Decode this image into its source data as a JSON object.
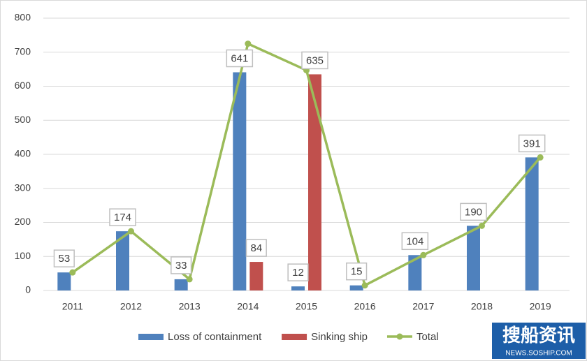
{
  "chart_data": {
    "type": "bar",
    "categories": [
      "2011",
      "2012",
      "2013",
      "2014",
      "2015",
      "2016",
      "2017",
      "2018",
      "2019"
    ],
    "series": [
      {
        "name": "Loss of containment",
        "type": "bar",
        "color": "#4f81bd",
        "data_labels": true,
        "values": [
          53,
          174,
          33,
          641,
          12,
          15,
          104,
          190,
          391
        ]
      },
      {
        "name": "Sinking ship",
        "type": "bar",
        "color": "#c0504d",
        "data_labels": true,
        "values": [
          null,
          null,
          null,
          84,
          635,
          null,
          null,
          null,
          null
        ]
      },
      {
        "name": "Total",
        "type": "line",
        "color": "#9bbb59",
        "data_labels": false,
        "values": [
          53,
          174,
          33,
          725,
          647,
          15,
          104,
          190,
          391
        ]
      }
    ],
    "ylim": [
      0,
      800
    ],
    "yticks": [
      0,
      100,
      200,
      300,
      400,
      500,
      600,
      700,
      800
    ],
    "grid": true,
    "legend": "bottom",
    "watermark": {
      "title": "搜船资讯",
      "url": "NEWS.SOSHIP.COM"
    }
  }
}
